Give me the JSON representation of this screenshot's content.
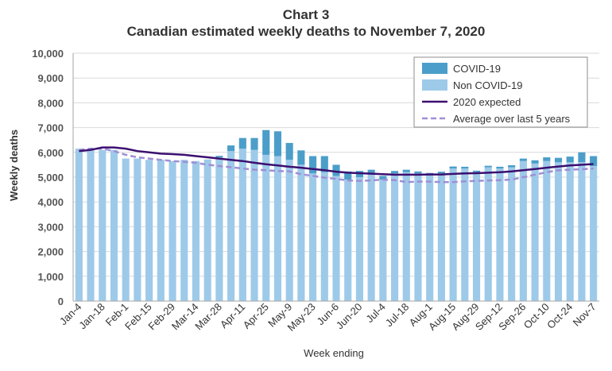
{
  "chart_data": {
    "type": "bar",
    "title": "Chart 3",
    "subtitle": "Canadian estimated weekly deaths to November 7, 2020",
    "xlabel": "Week ending",
    "ylabel": "Weekly deaths",
    "ylim": [
      0,
      10000
    ],
    "yticks": [
      "0",
      "1,000",
      "2,000",
      "3,000",
      "4,000",
      "5,000",
      "6,000",
      "7,000",
      "8,000",
      "9,000",
      "10,000"
    ],
    "grid": true,
    "legend_position": "top-right",
    "stacked": true,
    "categories": [
      "Jan-4",
      "Jan-11",
      "Jan-18",
      "Jan-25",
      "Feb-1",
      "Feb-8",
      "Feb-15",
      "Feb-22",
      "Feb-29",
      "Mar-7",
      "Mar-14",
      "Mar-21",
      "Mar-28",
      "Apr-4",
      "Apr-11",
      "Apr-18",
      "Apr-25",
      "May-2",
      "May-9",
      "May-16",
      "May-23",
      "May-30",
      "Jun-6",
      "Jun-13",
      "Jun-20",
      "Jun-27",
      "Jul-4",
      "Jul-11",
      "Jul-18",
      "Jul-25",
      "Aug-1",
      "Aug-8",
      "Aug-15",
      "Aug-22",
      "Aug-29",
      "Sep-5",
      "Sep-12",
      "Sep-19",
      "Sep-26",
      "Oct-3",
      "Oct-10",
      "Oct-17",
      "Oct-24",
      "Oct-31",
      "Nov-7"
    ],
    "x_tick_labels": [
      "Jan-4",
      "Jan-18",
      "Feb-1",
      "Feb-15",
      "Feb-29",
      "Mar-14",
      "Mar-28",
      "Apr-11",
      "Apr-25",
      "May-9",
      "May-23",
      "Jun-6",
      "Jun-20",
      "Jul-4",
      "Jul-18",
      "Aug-1",
      "Aug-15",
      "Aug-29",
      "Sep-12",
      "Sep-26",
      "Oct-10",
      "Oct-24",
      "Nov-7"
    ],
    "series": [
      {
        "name": "COVID-19",
        "kind": "bar",
        "color": "#4b9ec9",
        "values": [
          0,
          0,
          0,
          0,
          0,
          0,
          0,
          0,
          0,
          0,
          0,
          10,
          60,
          230,
          430,
          480,
          1000,
          1000,
          680,
          580,
          700,
          650,
          450,
          330,
          250,
          200,
          150,
          100,
          100,
          80,
          70,
          70,
          80,
          70,
          60,
          60,
          70,
          80,
          100,
          130,
          150,
          180,
          230,
          400,
          400
        ]
      },
      {
        "name": "Non COVID-19",
        "kind": "bar",
        "color": "#9ecae9",
        "values": [
          6150,
          6150,
          6100,
          6100,
          5750,
          5750,
          5700,
          5700,
          5650,
          5700,
          5650,
          5700,
          5800,
          6050,
          6150,
          6100,
          5900,
          5850,
          5700,
          5500,
          5150,
          5200,
          5050,
          4900,
          5000,
          5100,
          4900,
          5150,
          5200,
          5150,
          5100,
          5150,
          5350,
          5350,
          5200,
          5400,
          5350,
          5400,
          5650,
          5550,
          5650,
          5600,
          5600,
          5600,
          5450
        ]
      },
      {
        "name": "2020 expected",
        "kind": "line",
        "color": "#3b0f70",
        "values": [
          6050,
          6100,
          6200,
          6200,
          6150,
          6050,
          6000,
          5950,
          5930,
          5900,
          5850,
          5800,
          5750,
          5700,
          5650,
          5580,
          5520,
          5470,
          5420,
          5380,
          5330,
          5280,
          5220,
          5180,
          5160,
          5140,
          5120,
          5100,
          5100,
          5100,
          5110,
          5110,
          5130,
          5150,
          5160,
          5180,
          5200,
          5230,
          5280,
          5330,
          5380,
          5430,
          5470,
          5500,
          5530
        ]
      },
      {
        "name": "Average over last 5 years",
        "kind": "dashed-line",
        "color": "#9f8fd6",
        "values": [
          6100,
          6150,
          6150,
          6050,
          5900,
          5800,
          5750,
          5700,
          5650,
          5620,
          5580,
          5500,
          5450,
          5400,
          5350,
          5300,
          5280,
          5250,
          5230,
          5120,
          5050,
          4980,
          4930,
          4870,
          4850,
          4870,
          4900,
          4880,
          4800,
          4820,
          4820,
          4800,
          4800,
          4830,
          4850,
          4870,
          4880,
          4900,
          5000,
          5100,
          5200,
          5280,
          5300,
          5320,
          5350
        ]
      }
    ]
  }
}
